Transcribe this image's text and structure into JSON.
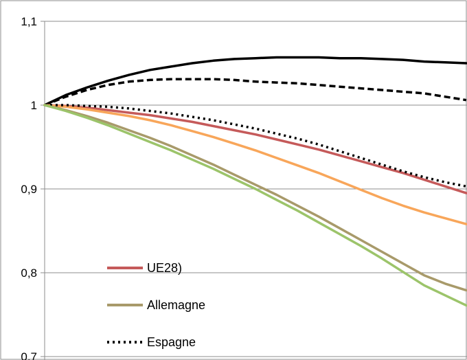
{
  "chart_data": {
    "type": "line",
    "title": "",
    "xlabel": "",
    "ylabel": "",
    "ylim": [
      0.7,
      1.1
    ],
    "yticks": [
      {
        "value": 1.1,
        "label": "1,1"
      },
      {
        "value": 1.0,
        "label": "1"
      },
      {
        "value": 0.9,
        "label": "0,9"
      },
      {
        "value": 0.8,
        "label": "0,8"
      },
      {
        "value": 0.7,
        "label": "0,7"
      }
    ],
    "grid": true,
    "legend_position": "bottom-left",
    "x": [
      0,
      1,
      2,
      3,
      4,
      5,
      6,
      7,
      8,
      9,
      10,
      11,
      12,
      13,
      14,
      15,
      16,
      17,
      18,
      19,
      20
    ],
    "series": [
      {
        "name": "",
        "color": "#000000",
        "dash": "solid",
        "values": [
          1.0,
          1.012,
          1.021,
          1.029,
          1.036,
          1.042,
          1.046,
          1.05,
          1.053,
          1.055,
          1.056,
          1.057,
          1.057,
          1.057,
          1.056,
          1.056,
          1.055,
          1.054,
          1.052,
          1.051,
          1.05
        ]
      },
      {
        "name": "",
        "color": "#000000",
        "dash": "dashed",
        "values": [
          1.0,
          1.01,
          1.018,
          1.024,
          1.028,
          1.03,
          1.031,
          1.031,
          1.031,
          1.03,
          1.028,
          1.027,
          1.026,
          1.024,
          1.022,
          1.02,
          1.018,
          1.016,
          1.014,
          1.01,
          1.006
        ]
      },
      {
        "name": "UE28)",
        "color": "#c55a5a",
        "dash": "solid",
        "values": [
          1.0,
          0.999,
          0.997,
          0.994,
          0.991,
          0.988,
          0.984,
          0.98,
          0.975,
          0.97,
          0.965,
          0.959,
          0.953,
          0.947,
          0.94,
          0.933,
          0.926,
          0.919,
          0.911,
          0.903,
          0.895
        ]
      },
      {
        "name": "",
        "color": "#f8a65a",
        "dash": "solid",
        "values": [
          1.0,
          0.998,
          0.995,
          0.991,
          0.987,
          0.982,
          0.976,
          0.969,
          0.962,
          0.954,
          0.946,
          0.937,
          0.928,
          0.919,
          0.909,
          0.899,
          0.889,
          0.88,
          0.872,
          0.865,
          0.858
        ]
      },
      {
        "name": "Espagne",
        "color": "#000000",
        "dash": "dotted",
        "values": [
          1.0,
          1.0,
          0.999,
          0.998,
          0.996,
          0.993,
          0.99,
          0.986,
          0.982,
          0.977,
          0.972,
          0.966,
          0.96,
          0.953,
          0.945,
          0.937,
          0.929,
          0.921,
          0.914,
          0.908,
          0.903
        ]
      },
      {
        "name": "Allemagne",
        "color": "#a89a6a",
        "dash": "solid",
        "values": [
          1.0,
          0.994,
          0.987,
          0.979,
          0.97,
          0.961,
          0.951,
          0.94,
          0.929,
          0.917,
          0.905,
          0.893,
          0.88,
          0.867,
          0.853,
          0.839,
          0.825,
          0.811,
          0.797,
          0.787,
          0.779
        ]
      },
      {
        "name": "",
        "color": "#9cc46a",
        "dash": "solid",
        "values": [
          1.0,
          0.993,
          0.985,
          0.976,
          0.966,
          0.956,
          0.946,
          0.935,
          0.924,
          0.912,
          0.9,
          0.887,
          0.874,
          0.86,
          0.846,
          0.832,
          0.817,
          0.801,
          0.785,
          0.773,
          0.761
        ]
      }
    ],
    "legend": [
      {
        "label": "UE28)",
        "color": "#c55a5a",
        "dash": "solid"
      },
      {
        "label": "Allemagne",
        "color": "#a89a6a",
        "dash": "solid"
      },
      {
        "label": "Espagne",
        "color": "#000000",
        "dash": "dotted"
      }
    ]
  }
}
